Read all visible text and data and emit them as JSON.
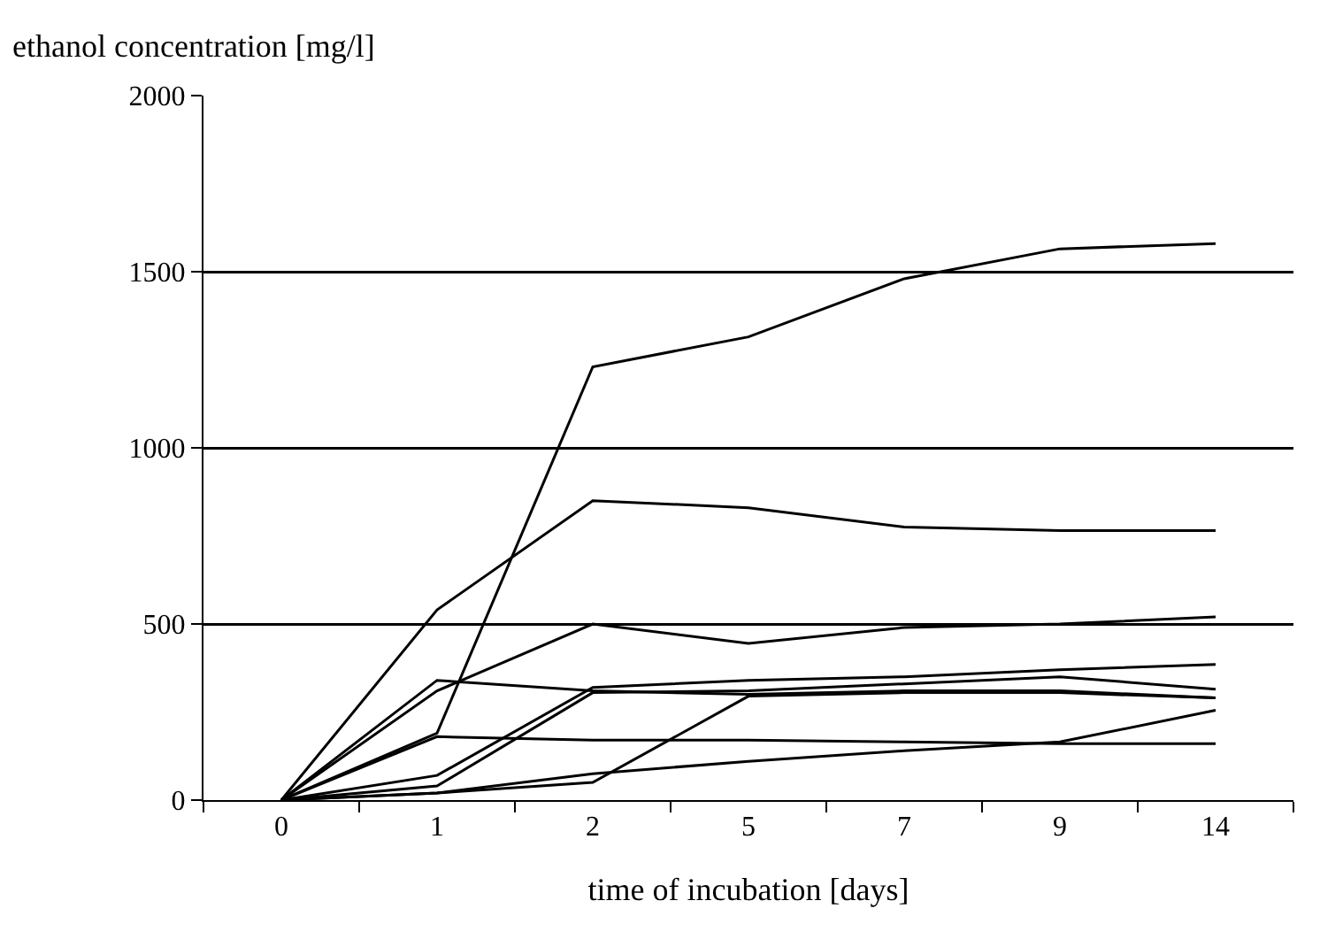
{
  "chart_data": {
    "type": "line",
    "ylabel": "ethanol concentration [mg/l]",
    "xlabel": "time of incubation [days]",
    "categories": [
      "0",
      "1",
      "2",
      "5",
      "7",
      "9",
      "14"
    ],
    "ylim": [
      0,
      2000
    ],
    "yticks": [
      0,
      500,
      1000,
      1500,
      2000
    ],
    "grid": "y",
    "marker": "none",
    "line_style": "solid",
    "series": [
      {
        "color": "#000000",
        "values": [
          0,
          190,
          1230,
          1315,
          1480,
          1565,
          1580
        ]
      },
      {
        "color": "#000000",
        "values": [
          0,
          540,
          850,
          830,
          775,
          765,
          765
        ]
      },
      {
        "color": "#000000",
        "values": [
          0,
          310,
          500,
          445,
          490,
          500,
          520
        ]
      },
      {
        "color": "#000000",
        "values": [
          0,
          340,
          310,
          300,
          310,
          310,
          290
        ]
      },
      {
        "color": "#000000",
        "values": [
          0,
          180,
          170,
          170,
          165,
          160,
          160
        ]
      },
      {
        "color": "#000000",
        "values": [
          0,
          70,
          320,
          340,
          350,
          370,
          385
        ]
      },
      {
        "color": "#000000",
        "values": [
          0,
          40,
          305,
          310,
          330,
          350,
          315
        ]
      },
      {
        "color": "#000000",
        "values": [
          0,
          20,
          50,
          295,
          305,
          305,
          290
        ]
      },
      {
        "color": "#000000",
        "values": [
          0,
          20,
          75,
          110,
          140,
          165,
          255
        ]
      }
    ]
  }
}
